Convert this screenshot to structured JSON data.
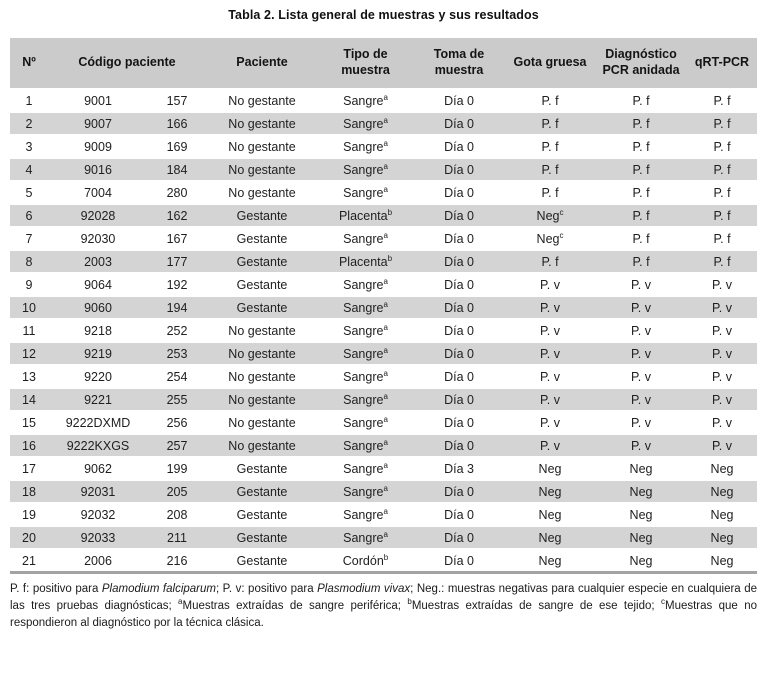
{
  "title": "Tabla 2. Lista general de muestras y sus resultados",
  "colors": {
    "header_bg": "#cbcbcb",
    "row_alt_bg": "#d4d4d4",
    "bottom_border": "#a3a3a3",
    "text": "#1b1b1b"
  },
  "table": {
    "headers": {
      "numero": "Nº",
      "codigo": "Código paciente",
      "paciente": "Paciente",
      "tipo": "Tipo de muestra",
      "toma": "Toma de muestra",
      "gota": "Gota gruesa",
      "pcr": "Diagnóstico PCR anidada",
      "qrt": "qRT-PCR"
    },
    "rows": [
      {
        "n": "1",
        "codigo": "9001",
        "id": "157",
        "paciente": "No gestante",
        "tipo": "Sangre",
        "tipo_sup": "a",
        "toma": "Día 0",
        "gota": "P. f",
        "pcr": "P. f",
        "qrt": "P. f"
      },
      {
        "n": "2",
        "codigo": "9007",
        "id": "166",
        "paciente": "No gestante",
        "tipo": "Sangre",
        "tipo_sup": "a",
        "toma": "Día 0",
        "gota": "P. f",
        "pcr": "P. f",
        "qrt": "P. f"
      },
      {
        "n": "3",
        "codigo": "9009",
        "id": "169",
        "paciente": "No gestante",
        "tipo": "Sangre",
        "tipo_sup": "a",
        "toma": "Día 0",
        "gota": "P. f",
        "pcr": "P. f",
        "qrt": "P. f"
      },
      {
        "n": "4",
        "codigo": "9016",
        "id": "184",
        "paciente": "No gestante",
        "tipo": "Sangre",
        "tipo_sup": "a",
        "toma": "Día 0",
        "gota": "P. f",
        "pcr": "P. f",
        "qrt": "P. f"
      },
      {
        "n": "5",
        "codigo": "7004",
        "id": "280",
        "paciente": "No gestante",
        "tipo": "Sangre",
        "tipo_sup": "a",
        "toma": "Día 0",
        "gota": "P. f",
        "pcr": "P. f",
        "qrt": "P. f"
      },
      {
        "n": "6",
        "codigo": "92028",
        "id": "162",
        "paciente": "Gestante",
        "tipo": "Placenta",
        "tipo_sup": "b",
        "toma": "Día 0",
        "gota": "Neg",
        "gota_sup": "c",
        "pcr": "P. f",
        "qrt": "P. f"
      },
      {
        "n": "7",
        "codigo": "92030",
        "id": "167",
        "paciente": "Gestante",
        "tipo": "Sangre",
        "tipo_sup": "a",
        "toma": "Día 0",
        "gota": "Neg",
        "gota_sup": "c",
        "pcr": "P. f",
        "qrt": "P. f"
      },
      {
        "n": "8",
        "codigo": "2003",
        "id": "177",
        "paciente": "Gestante",
        "tipo": "Placenta",
        "tipo_sup": "b",
        "toma": "Día 0",
        "gota": "P. f",
        "pcr": "P. f",
        "qrt": "P. f"
      },
      {
        "n": "9",
        "codigo": "9064",
        "id": "192",
        "paciente": "Gestante",
        "tipo": "Sangre",
        "tipo_sup": "a",
        "toma": "Día 0",
        "gota": "P. v",
        "pcr": "P. v",
        "qrt": "P. v"
      },
      {
        "n": "10",
        "codigo": "9060",
        "id": "194",
        "paciente": "Gestante",
        "tipo": "Sangre",
        "tipo_sup": "a",
        "toma": "Día 0",
        "gota": "P. v",
        "pcr": "P. v",
        "qrt": "P. v"
      },
      {
        "n": "11",
        "codigo": "9218",
        "id": "252",
        "paciente": "No gestante",
        "tipo": "Sangre",
        "tipo_sup": "a",
        "toma": "Día 0",
        "gota": "P. v",
        "pcr": "P. v",
        "qrt": "P. v"
      },
      {
        "n": "12",
        "codigo": "9219",
        "id": "253",
        "paciente": "No gestante",
        "tipo": "Sangre",
        "tipo_sup": "a",
        "toma": "Día 0",
        "gota": "P. v",
        "pcr": "P. v",
        "qrt": "P. v"
      },
      {
        "n": "13",
        "codigo": "9220",
        "id": "254",
        "paciente": "No gestante",
        "tipo": "Sangre",
        "tipo_sup": "a",
        "toma": "Día 0",
        "gota": "P. v",
        "pcr": "P. v",
        "qrt": "P. v"
      },
      {
        "n": "14",
        "codigo": "9221",
        "id": "255",
        "paciente": "No gestante",
        "tipo": "Sangre",
        "tipo_sup": "a",
        "toma": "Día 0",
        "gota": "P. v",
        "pcr": "P. v",
        "qrt": "P. v"
      },
      {
        "n": "15",
        "codigo": "9222DXMD",
        "id": "256",
        "paciente": "No gestante",
        "tipo": "Sangre",
        "tipo_sup": "a",
        "toma": "Día 0",
        "gota": "P. v",
        "pcr": "P. v",
        "qrt": "P. v"
      },
      {
        "n": "16",
        "codigo": "9222KXGS",
        "id": "257",
        "paciente": "No gestante",
        "tipo": "Sangre",
        "tipo_sup": "a",
        "toma": "Día 0",
        "gota": "P. v",
        "pcr": "P. v",
        "qrt": "P. v"
      },
      {
        "n": "17",
        "codigo": "9062",
        "id": "199",
        "paciente": "Gestante",
        "tipo": "Sangre",
        "tipo_sup": "a",
        "toma": "Día 3",
        "gota": "Neg",
        "pcr": "Neg",
        "qrt": "Neg"
      },
      {
        "n": "18",
        "codigo": "92031",
        "id": "205",
        "paciente": "Gestante",
        "tipo": "Sangre",
        "tipo_sup": "a",
        "toma": "Día 0",
        "gota": "Neg",
        "pcr": "Neg",
        "qrt": "Neg"
      },
      {
        "n": "19",
        "codigo": "92032",
        "id": "208",
        "paciente": "Gestante",
        "tipo": "Sangre",
        "tipo_sup": "a",
        "toma": "Día 0",
        "gota": "Neg",
        "pcr": "Neg",
        "qrt": "Neg"
      },
      {
        "n": "20",
        "codigo": "92033",
        "id": "211",
        "paciente": "Gestante",
        "tipo": "Sangre",
        "tipo_sup": "a",
        "toma": "Día 0",
        "gota": "Neg",
        "pcr": "Neg",
        "qrt": "Neg"
      },
      {
        "n": "21",
        "codigo": "2006",
        "id": "216",
        "paciente": "Gestante",
        "tipo": "Cordón",
        "tipo_sup": "b",
        "toma": "Día 0",
        "gota": "Neg",
        "pcr": "Neg",
        "qrt": "Neg"
      }
    ]
  },
  "footnote": {
    "segments": [
      {
        "text": "P. f: positivo para "
      },
      {
        "text": "Plamodium falciparum",
        "italic": true
      },
      {
        "text": "; P. v: positivo para "
      },
      {
        "text": "Plasmodium vivax",
        "italic": true
      },
      {
        "text": "; Neg.: muestras negativas para cualquier especie en cualquiera de las tres pruebas diagnósticas; "
      },
      {
        "text": "a",
        "sup": true
      },
      {
        "text": "Muestras extraídas de sangre periférica; "
      },
      {
        "text": "b",
        "sup": true
      },
      {
        "text": "Muestras extraídas de sangre de ese tejido; "
      },
      {
        "text": "c",
        "sup": true
      },
      {
        "text": "Muestras que no respondieron al diagnóstico por la técnica clásica."
      }
    ]
  }
}
